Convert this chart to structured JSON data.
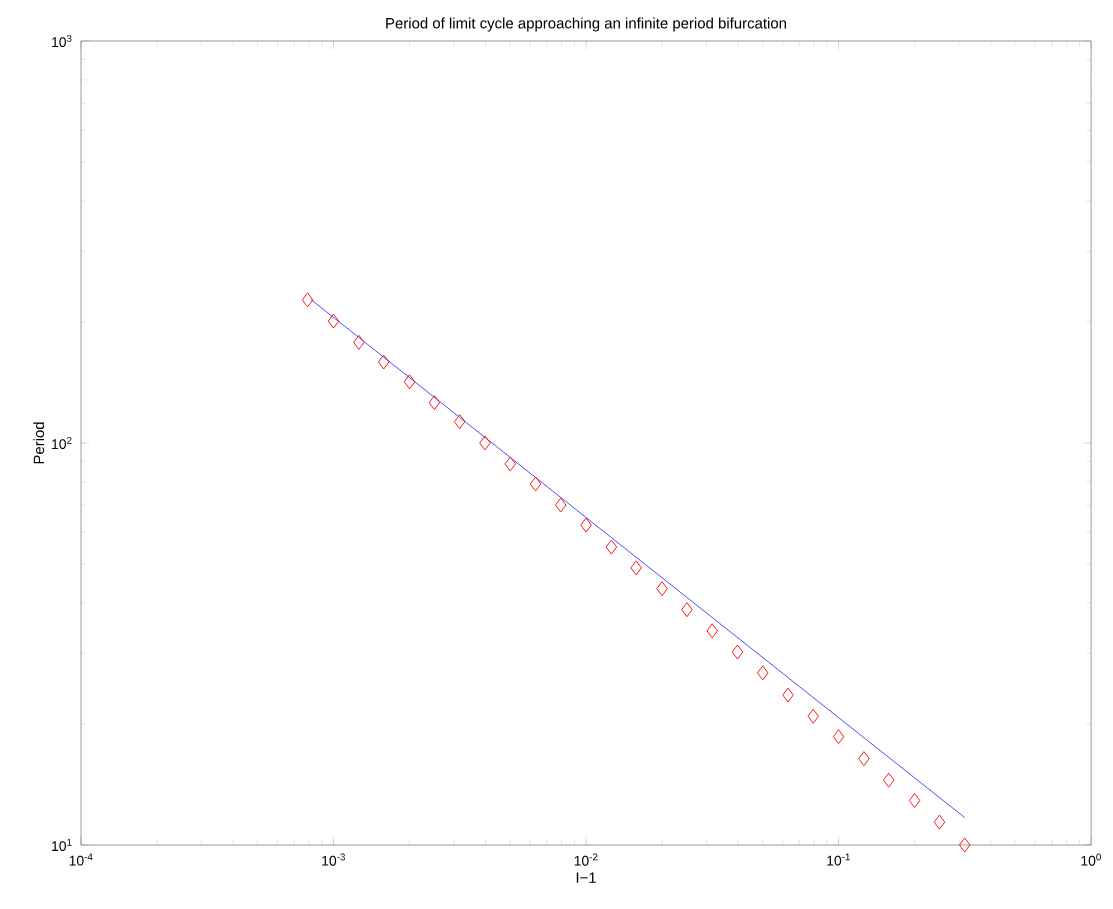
{
  "chart_data": {
    "type": "scatter",
    "title": "Period of limit cycle approaching an infinite period bifurcation",
    "xlabel": "I−1",
    "ylabel": "Period",
    "log": "xy",
    "grid": false,
    "xlim": [
      0.0001,
      1
    ],
    "ylim": [
      10,
      1000
    ],
    "xticks": [
      {
        "value": 0.0001,
        "label": "10$^{-4}$"
      },
      {
        "value": 0.001,
        "label": "10$^{-3}$"
      },
      {
        "value": 0.01,
        "label": "10$^{-2}$"
      },
      {
        "value": 0.1,
        "label": "10$^{-1}$"
      },
      {
        "value": 1,
        "label": "10$^{0}$"
      }
    ],
    "yticks": [
      {
        "value": 10,
        "label": "10$^{1}$"
      },
      {
        "value": 100,
        "label": "10$^{2}$"
      },
      {
        "value": 1000,
        "label": "10$^{3}$"
      }
    ],
    "series": [
      {
        "marker": "diamond",
        "color": "#ff0000",
        "x": [
          0.00079,
          0.001,
          0.00126,
          0.00158,
          0.002,
          0.00251,
          0.00316,
          0.00398,
          0.00501,
          0.00631,
          0.00794,
          0.01,
          0.0126,
          0.0158,
          0.02,
          0.0251,
          0.0316,
          0.0398,
          0.0501,
          0.0631,
          0.0794,
          0.1,
          0.126,
          0.158,
          0.2,
          0.251,
          0.316
        ],
        "values": [
          227,
          201,
          178,
          159,
          142,
          126,
          113,
          100,
          88.7,
          79.1,
          70.1,
          62.5,
          55.1,
          48.9,
          43.4,
          38.5,
          34.1,
          30.2,
          26.8,
          23.6,
          20.9,
          18.6,
          16.4,
          14.5,
          12.9,
          11.4,
          10.0
        ]
      },
      {
        "type": "line",
        "marker": "none",
        "line_style": "solid",
        "color": "#0000ff",
        "x": [
          0.00081,
          0.316
        ],
        "values": [
          228,
          11.7
        ]
      }
    ]
  }
}
